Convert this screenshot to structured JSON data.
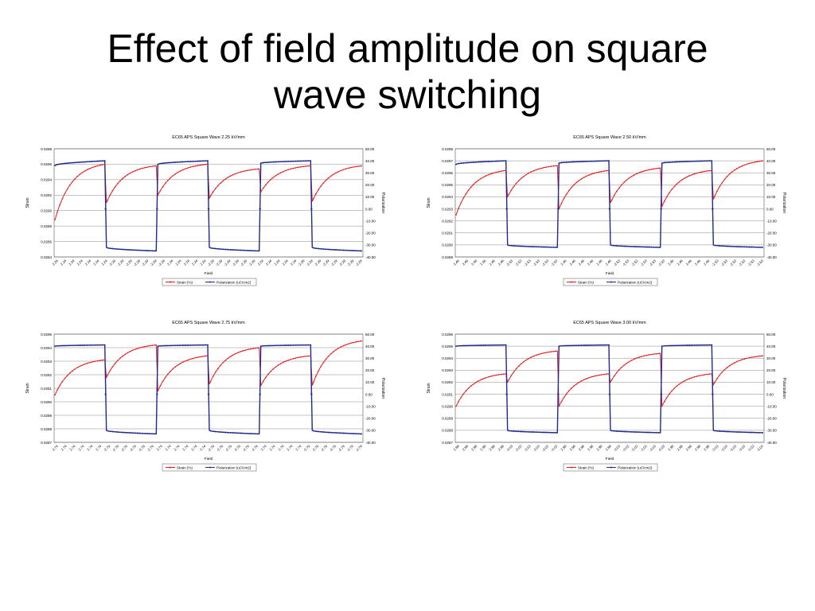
{
  "slide": {
    "title_line1": "Effect of field amplitude on square",
    "title_line2": "wave switching"
  },
  "colors": {
    "strain": "#e31a1c",
    "polarization": "#1f2a8c"
  },
  "chart_data": [
    {
      "type": "line",
      "title": "EC65 APS  Square  Wave 2.25 kV/mm",
      "xlabel": "Field",
      "ylabel_left": "Strain",
      "ylabel_right": "Polarization",
      "left_ticks": [
        "0.0298",
        "0.0296",
        "0.0294",
        "0.0292",
        "0.0290",
        "0.0288",
        "0.0286",
        "0.0284"
      ],
      "left_ylim": [
        0.0284,
        0.0298
      ],
      "right_ticks": [
        "50.00",
        "40.00",
        "30.00",
        "20.00",
        "10.00",
        "0.00",
        "-10.00",
        "-20.00",
        "-30.00",
        "-40.00"
      ],
      "right_ylim": [
        -40,
        50
      ],
      "x_ticks": [
        "2.26",
        "2.24",
        "2.24",
        "2.24",
        "2.24",
        "2.24",
        "2.24",
        "-2.29",
        "-2.29",
        "-2.29",
        "-2.29",
        "-2.29",
        "-2.29",
        "-2.29",
        "2.24",
        "2.24",
        "2.24",
        "2.24",
        "2.24",
        "-2.29",
        "-2.29",
        "-2.29",
        "-2.29",
        "-2.29",
        "-2.29",
        "2.24",
        "2.24",
        "2.24",
        "2.24",
        "2.24",
        "-2.28",
        "-2.29",
        "-2.29",
        "-2.29",
        "-2.29",
        "-2.29",
        "-2.29",
        "-2.29"
      ],
      "legend": [
        "Strain (%)",
        "Polarization (uC/cm2)"
      ],
      "segments": [
        {
          "s": 0.02888,
          "e": 0.0296,
          "p": [
            36,
            40
          ]
        },
        {
          "s": 0.0291,
          "e": 0.02958,
          "p": [
            -32,
            -35
          ]
        },
        {
          "s": 0.0292,
          "e": 0.0296,
          "p": [
            37,
            40
          ]
        },
        {
          "s": 0.02916,
          "e": 0.02954,
          "p": [
            -32,
            -35
          ]
        },
        {
          "s": 0.02924,
          "e": 0.02958,
          "p": [
            38,
            40
          ]
        },
        {
          "s": 0.02912,
          "e": 0.02958,
          "p": [
            -32,
            -35
          ]
        }
      ]
    },
    {
      "type": "line",
      "title": "EC65 APS  Square  Wave 2.50 kV/mm",
      "xlabel": "Field",
      "ylabel_left": "Strain",
      "ylabel_right": "Polarization",
      "left_ticks": [
        "0.0298",
        "0.0297",
        "0.0296",
        "0.0295",
        "0.0294",
        "0.0293",
        "0.0292",
        "0.0291",
        "0.0290",
        "0.0289"
      ],
      "left_ylim": [
        0.0289,
        0.0298
      ],
      "right_ticks": [
        "50.00",
        "40.00",
        "30.00",
        "20.00",
        "10.00",
        "0.00",
        "-10.00",
        "-20.00",
        "-30.00",
        "-40.00"
      ],
      "right_ylim": [
        -40,
        50
      ],
      "x_ticks": [
        "2.49",
        "2.46",
        "2.46",
        "2.46",
        "2.46",
        "2.46",
        "-2.53",
        "-2.53",
        "-2.53",
        "-2.53",
        "-2.53",
        "-2.53",
        "2.46",
        "2.46",
        "2.46",
        "2.46",
        "2.46",
        "2.46",
        "-2.53",
        "-2.53",
        "-2.53",
        "-2.53",
        "-2.53",
        "-2.53",
        "2.46",
        "2.46",
        "2.46",
        "2.46",
        "2.46",
        "-2.53",
        "-2.53",
        "-2.53",
        "-2.53",
        "-2.53",
        "-2.53"
      ],
      "legend": [
        "Strain (%)",
        "Polarization (uC/cm2)"
      ],
      "segments": [
        {
          "s": 0.02925,
          "e": 0.02962,
          "p": [
            37,
            40
          ]
        },
        {
          "s": 0.0294,
          "e": 0.02966,
          "p": [
            -30,
            -32
          ]
        },
        {
          "s": 0.0293,
          "e": 0.02962,
          "p": [
            38,
            40
          ]
        },
        {
          "s": 0.02935,
          "e": 0.02964,
          "p": [
            -30,
            -32
          ]
        },
        {
          "s": 0.02932,
          "e": 0.02962,
          "p": [
            38,
            40
          ]
        },
        {
          "s": 0.02938,
          "e": 0.0297,
          "p": [
            -30,
            -32
          ]
        }
      ]
    },
    {
      "type": "line",
      "title": "EC65 APS  Square  Wave 2.75 kV/mm",
      "xlabel": "Field",
      "ylabel_left": "Strain",
      "ylabel_right": "Polarization",
      "left_ticks": [
        "0.0295",
        "0.0294",
        "0.0293",
        "0.0292",
        "0.0291",
        "0.0290",
        "0.0289",
        "0.0288",
        "0.0287"
      ],
      "left_ylim": [
        0.0287,
        0.0295
      ],
      "right_ticks": [
        "50.00",
        "40.00",
        "30.00",
        "20.00",
        "10.00",
        "0.00",
        "-10.00",
        "-20.00",
        "-30.00",
        "-40.00"
      ],
      "right_ylim": [
        -40,
        50
      ],
      "x_ticks": [
        "2.74",
        "2.74",
        "2.74",
        "2.74",
        "2.74",
        "2.74",
        "-2.79",
        "-2.79",
        "-2.79",
        "-2.79",
        "-2.79",
        "-2.79",
        "2.74",
        "2.74",
        "2.74",
        "2.74",
        "2.74",
        "2.74",
        "-2.79",
        "-2.79",
        "-2.79",
        "-2.79",
        "-2.79",
        "-2.79",
        "2.74",
        "2.74",
        "2.74",
        "2.74",
        "2.74",
        "-2.79",
        "-2.79",
        "-2.79",
        "-2.79",
        "-2.79",
        "-2.79",
        "-2.79"
      ],
      "legend": [
        "Strain (%)",
        "Polarization (uC/cm2)"
      ],
      "segments": [
        {
          "s": 0.02905,
          "e": 0.02931,
          "p": [
            40,
            41
          ]
        },
        {
          "s": 0.02918,
          "e": 0.02942,
          "p": [
            -30,
            -33
          ]
        },
        {
          "s": 0.02908,
          "e": 0.02934,
          "p": [
            40,
            41
          ]
        },
        {
          "s": 0.02913,
          "e": 0.0294,
          "p": [
            -30,
            -33
          ]
        },
        {
          "s": 0.02912,
          "e": 0.02934,
          "p": [
            40,
            41
          ]
        },
        {
          "s": 0.02912,
          "e": 0.02945,
          "p": [
            -30,
            -33
          ]
        }
      ]
    },
    {
      "type": "line",
      "title": "EC65 APS  Square  Wave 3.00 kV/mm",
      "xlabel": "Field",
      "ylabel_left": "Strain",
      "ylabel_right": "Polarization",
      "left_ticks": [
        "0.0296",
        "0.0295",
        "0.0294",
        "0.0293",
        "0.0292",
        "0.0291",
        "0.0290",
        "0.0289",
        "0.0288",
        "0.0287"
      ],
      "left_ylim": [
        0.0287,
        0.0296
      ],
      "right_ticks": [
        "50.00",
        "40.00",
        "30.00",
        "20.00",
        "10.00",
        "0.00",
        "-10.00",
        "-20.00",
        "-30.00",
        "-40.00"
      ],
      "right_ylim": [
        -40,
        50
      ],
      "x_ticks": [
        "2.98",
        "2.98",
        "2.98",
        "2.98",
        "2.98",
        "2.98",
        "-3.03",
        "-3.03",
        "-3.03",
        "-3.03",
        "-3.03",
        "-3.03",
        "2.98",
        "2.98",
        "2.98",
        "2.98",
        "2.98",
        "2.98",
        "-3.03",
        "-3.03",
        "-3.03",
        "-3.03",
        "-3.03",
        "-3.03",
        "2.98",
        "2.98",
        "2.98",
        "2.98",
        "2.98",
        "-3.03",
        "-3.03",
        "-3.03",
        "-3.03",
        "-3.03",
        "-3.03"
      ],
      "legend": [
        "Strain (%)",
        "Polarization (uC/cm2)"
      ],
      "segments": [
        {
          "s": 0.029,
          "e": 0.02927,
          "p": [
            40,
            41
          ]
        },
        {
          "s": 0.0292,
          "e": 0.02946,
          "p": [
            -30,
            -32
          ]
        },
        {
          "s": 0.029,
          "e": 0.02927,
          "p": [
            40,
            41
          ]
        },
        {
          "s": 0.0292,
          "e": 0.02944,
          "p": [
            -30,
            -32
          ]
        },
        {
          "s": 0.029,
          "e": 0.02927,
          "p": [
            40,
            41
          ]
        },
        {
          "s": 0.02918,
          "e": 0.02942,
          "p": [
            -30,
            -32
          ]
        }
      ]
    }
  ]
}
